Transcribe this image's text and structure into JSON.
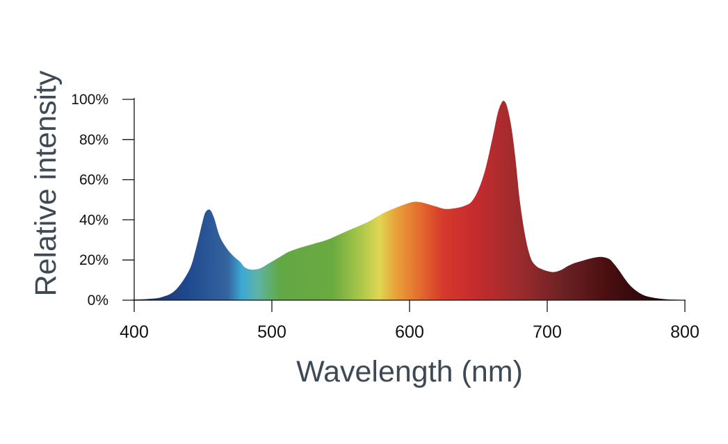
{
  "chart_data": {
    "type": "area",
    "title": "",
    "xlabel": "Wavelength (nm)",
    "ylabel": "Relative intensity",
    "xlim": [
      400,
      800
    ],
    "ylim": [
      0,
      100
    ],
    "x_ticks": [
      {
        "value": 400,
        "label": "400"
      },
      {
        "value": 500,
        "label": "500"
      },
      {
        "value": 600,
        "label": "600"
      },
      {
        "value": 700,
        "label": "700"
      },
      {
        "value": 800,
        "label": "800"
      }
    ],
    "y_ticks": [
      {
        "value": 0,
        "label": "0%"
      },
      {
        "value": 20,
        "label": "20%"
      },
      {
        "value": 40,
        "label": "40%"
      },
      {
        "value": 60,
        "label": "60%"
      },
      {
        "value": 80,
        "label": "80%"
      },
      {
        "value": 100,
        "label": "100%"
      }
    ],
    "grid": false,
    "legend": "none",
    "fill": "visible-spectrum gradient by wavelength",
    "x": [
      400,
      410,
      420,
      430,
      440,
      445,
      450,
      452,
      455,
      458,
      462,
      467,
      472,
      477,
      480,
      483,
      487,
      492,
      497,
      502,
      507,
      512,
      520,
      530,
      540,
      550,
      560,
      570,
      580,
      590,
      600,
      605,
      610,
      615,
      620,
      625,
      630,
      635,
      640,
      645,
      650,
      655,
      660,
      664,
      667,
      669,
      671,
      674,
      677,
      680,
      684,
      688,
      692,
      696,
      700,
      705,
      710,
      715,
      720,
      725,
      730,
      735,
      740,
      745,
      748,
      752,
      756,
      760,
      765,
      770,
      775,
      780,
      785,
      790,
      795,
      800
    ],
    "values": [
      0.3,
      0.6,
      1.5,
      5,
      15,
      26,
      40,
      44,
      45,
      41,
      32,
      26,
      22,
      19,
      16.5,
      15.5,
      15.2,
      16,
      18,
      20,
      22,
      24,
      26,
      28,
      30,
      33,
      36,
      39,
      43,
      46,
      48.5,
      49,
      48.5,
      47.5,
      46.5,
      45.5,
      45.5,
      46,
      47,
      49,
      55,
      65,
      80,
      93,
      98.5,
      99,
      96,
      86,
      70,
      50,
      32,
      21,
      17,
      15.5,
      14.5,
      14,
      15,
      17,
      18.5,
      19.5,
      20.5,
      21.3,
      21.5,
      20.5,
      18.5,
      15,
      11,
      7.5,
      4.5,
      2.5,
      1.5,
      0.9,
      0.5,
      0.3,
      0.2,
      0.1
    ]
  }
}
